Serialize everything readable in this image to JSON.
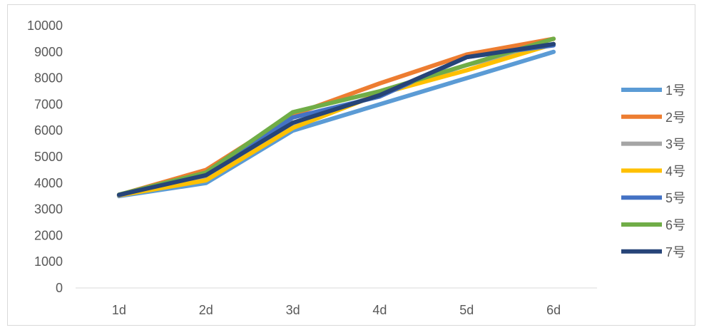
{
  "chart_data": {
    "type": "line",
    "categories": [
      "1d",
      "2d",
      "3d",
      "4d",
      "5d",
      "6d"
    ],
    "ylim": [
      0,
      10000
    ],
    "yticks": [
      0,
      1000,
      2000,
      3000,
      4000,
      5000,
      6000,
      7000,
      8000,
      9000,
      10000
    ],
    "grid": false,
    "legend": "right",
    "series": [
      {
        "name": "1号",
        "color": "#5B9BD5",
        "values": [
          3500,
          4000,
          6000,
          7000,
          8000,
          9000
        ]
      },
      {
        "name": "2号",
        "color": "#ED7D31",
        "values": [
          3550,
          4500,
          6600,
          7800,
          8900,
          9500
        ]
      },
      {
        "name": "3号",
        "color": "#A5A5A5",
        "values": [
          3520,
          4200,
          6200,
          7400,
          8500,
          9300
        ]
      },
      {
        "name": "4号",
        "color": "#FFC000",
        "values": [
          3530,
          4100,
          6100,
          7400,
          8300,
          9300
        ]
      },
      {
        "name": "5号",
        "color": "#4472C4",
        "values": [
          3540,
          4350,
          6500,
          7300,
          8800,
          9250
        ]
      },
      {
        "name": "6号",
        "color": "#70AD47",
        "values": [
          3560,
          4400,
          6700,
          7500,
          8500,
          9500
        ]
      },
      {
        "name": "7号",
        "color": "#264478",
        "values": [
          3550,
          4300,
          6300,
          7350,
          8800,
          9300
        ]
      }
    ]
  }
}
